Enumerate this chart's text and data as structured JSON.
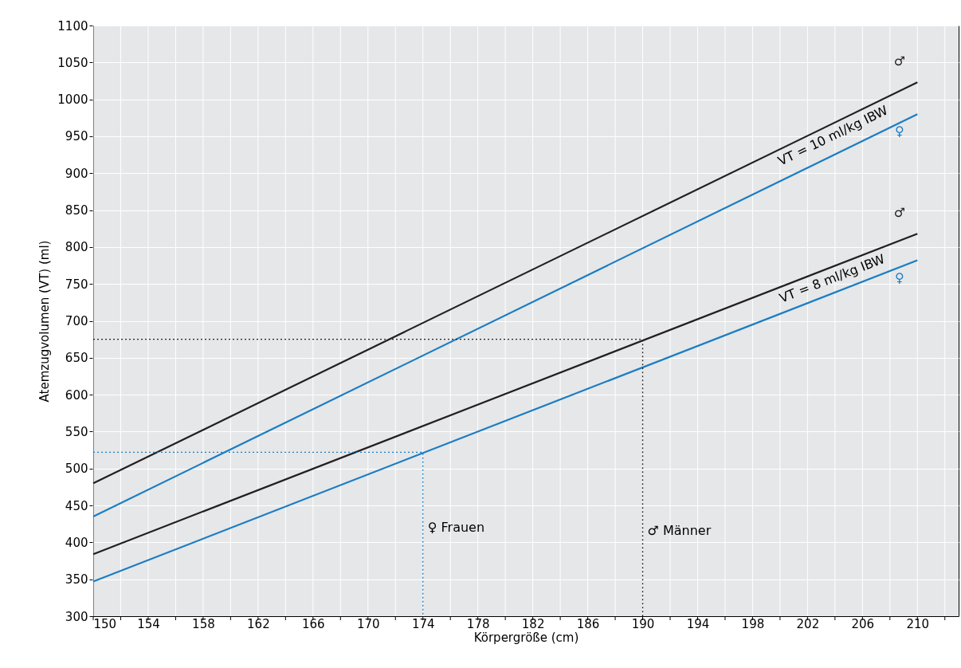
{
  "chart_data": {
    "type": "line",
    "xlabel": "Körpergröße (cm)",
    "ylabel": "Atemzugvolumen (VT) (ml)",
    "xlim": [
      150,
      213
    ],
    "ylim": [
      300,
      1100
    ],
    "xticks": [
      150,
      {
        "value": 152,
        "label": null
      },
      154,
      {
        "value": 156,
        "label": null
      },
      158,
      {
        "value": 160,
        "label": null
      },
      162,
      {
        "value": 164,
        "label": null
      },
      166,
      {
        "value": 168,
        "label": null
      },
      170,
      {
        "value": 172,
        "label": null
      },
      174,
      {
        "value": 176,
        "label": null
      },
      178,
      {
        "value": 180,
        "label": null
      },
      182,
      {
        "value": 184,
        "label": null
      },
      186,
      {
        "value": 188,
        "label": null
      },
      190,
      {
        "value": 192,
        "label": null
      },
      194,
      {
        "value": 196,
        "label": null
      },
      198,
      {
        "value": 200,
        "label": null
      },
      202,
      {
        "value": 204,
        "label": null
      },
      206,
      {
        "value": 208,
        "label": null
      },
      210,
      {
        "value": 212,
        "label": null
      }
    ],
    "yticks": [
      300,
      350,
      400,
      450,
      500,
      550,
      600,
      650,
      700,
      750,
      800,
      850,
      900,
      950,
      1000,
      1050,
      1100
    ],
    "grid": true,
    "line_style": "solid",
    "marker": "none",
    "series": [
      {
        "name": "♂",
        "color": "#231f20",
        "x": [
          150,
          210
        ],
        "values": [
          480,
          1023
        ]
      },
      {
        "name": "♀",
        "color": "#1a7dc4",
        "x": [
          150,
          210
        ],
        "values": [
          435,
          980
        ]
      },
      {
        "name": "♂",
        "color": "#231f20",
        "x": [
          150,
          210
        ],
        "values": [
          384,
          818
        ]
      },
      {
        "name": "♀",
        "color": "#1a7dc4",
        "x": [
          150,
          210
        ],
        "values": [
          347,
          782
        ]
      },
      {
        "color": "#231f20",
        "x": [
          150,
          190,
          190
        ],
        "values": [
          675,
          675,
          300
        ],
        "line_style": "dotted"
      },
      {
        "color": "#1a7dc4",
        "x": [
          150,
          174,
          174
        ],
        "values": [
          522,
          522,
          300
        ],
        "line_style": "dotted"
      }
    ],
    "annotations": [
      {
        "text": "VT = 10 ml/kg IBW",
        "x": 203.5,
        "y": 964
      },
      {
        "text": "VT = 8 ml/kg IBW",
        "x": 203.5,
        "y": 771
      },
      {
        "text": "♀ Frauen",
        "x": 174,
        "y": 420
      },
      {
        "text": "♂ Männer",
        "x": 190,
        "y": 415
      }
    ]
  }
}
